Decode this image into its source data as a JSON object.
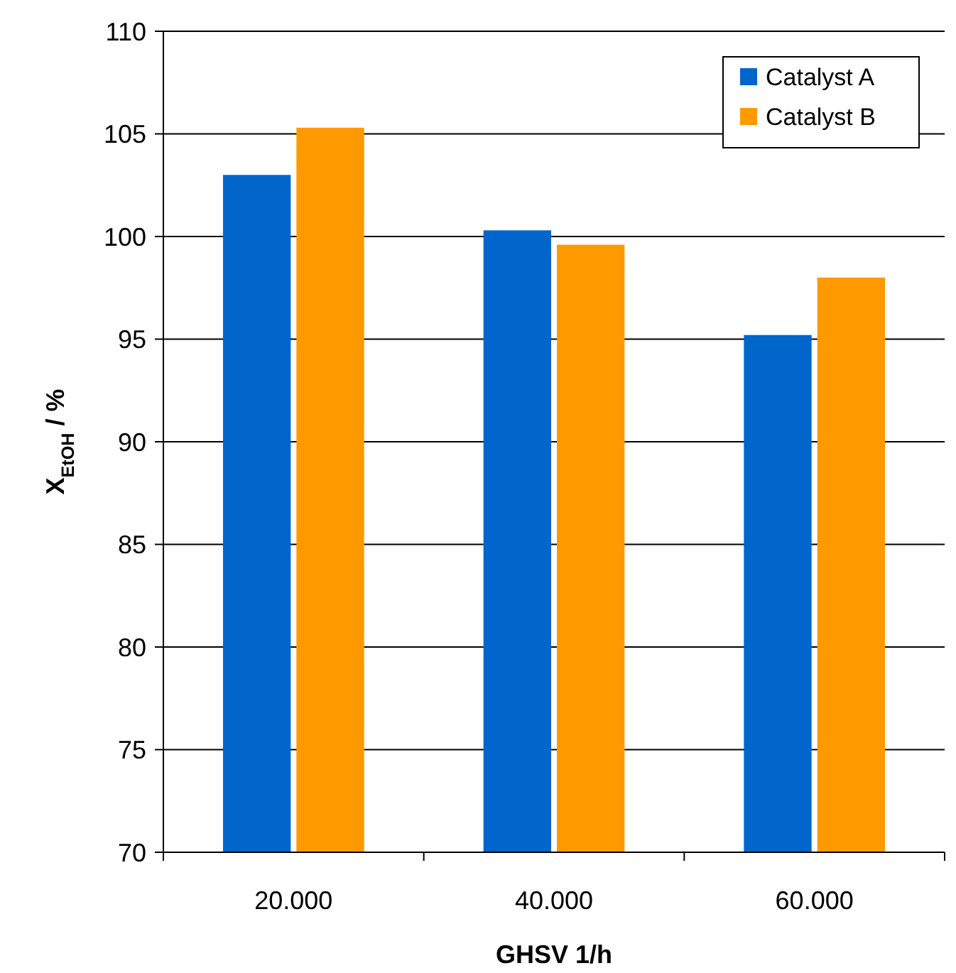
{
  "chart_data": {
    "type": "bar",
    "xlabel": "GHSV 1/h",
    "ylabel": "X$_{EtOH}$ / %",
    "categories": [
      "20.000",
      "40.000",
      "60.000"
    ],
    "series": [
      {
        "name": "Catalyst A",
        "color": "#0066cc",
        "values": [
          103.0,
          100.3,
          95.2
        ]
      },
      {
        "name": "Catalyst B",
        "color": "#ff9900",
        "values": [
          105.3,
          99.6,
          98.0
        ]
      }
    ],
    "ylim": [
      70,
      110
    ],
    "yticks": [
      70,
      75,
      80,
      85,
      90,
      95,
      100,
      105,
      110
    ],
    "grid": "y",
    "legend": "top right"
  }
}
